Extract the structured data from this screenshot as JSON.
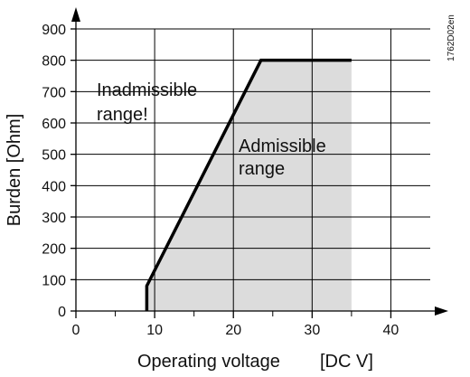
{
  "chart_data": {
    "type": "area",
    "title": "",
    "figure_code": "1762D02en",
    "xlabel": "Operating voltage",
    "xunit": "[DC V]",
    "ylabel": "Burden [Ohm]",
    "xlim": [
      0,
      45
    ],
    "ylim": [
      0,
      900
    ],
    "x_ticks": [
      0,
      10,
      20,
      30,
      40
    ],
    "y_ticks": [
      0,
      100,
      200,
      300,
      400,
      500,
      600,
      700,
      800,
      900
    ],
    "grid": true,
    "region_color": "#dcdcdc",
    "line_color": "#000000",
    "boundary": {
      "x": [
        9,
        9,
        23.5,
        35
      ],
      "y": [
        0,
        80,
        800,
        800
      ]
    },
    "admissible_region": {
      "x": [
        9,
        9,
        23.5,
        35,
        35
      ],
      "y": [
        0,
        80,
        800,
        800,
        0
      ]
    },
    "annotations": {
      "inadmissible": [
        "Inadmissible",
        "range!"
      ],
      "admissible": [
        "Admissible",
        "range"
      ]
    }
  }
}
